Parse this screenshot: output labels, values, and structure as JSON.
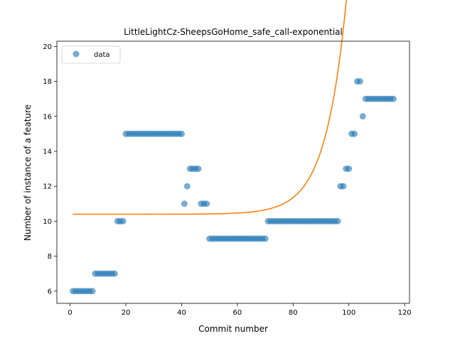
{
  "chart_data": {
    "type": "scatter",
    "title": "LittleLightCz-SheepsGoHome_safe_call-exponential",
    "xlabel": "Commit number",
    "ylabel": "Number of instance of a feature",
    "xlim": [
      -4.75,
      121.75
    ],
    "ylim": [
      5.3,
      20.3
    ],
    "xticks": [
      0,
      20,
      40,
      60,
      80,
      100,
      120
    ],
    "yticks": [
      6,
      8,
      10,
      12,
      14,
      16,
      18,
      20
    ],
    "grid": false,
    "legend": {
      "position": "top-left",
      "entries": [
        "data"
      ]
    },
    "colors": {
      "data": "#1f77b4",
      "fit": "#ff7f0e"
    },
    "series": [
      {
        "name": "data",
        "kind": "scatter",
        "x": [
          1,
          2,
          3,
          4,
          5,
          6,
          7,
          8,
          9,
          10,
          11,
          12,
          13,
          14,
          15,
          16,
          17,
          18,
          19,
          20,
          21,
          22,
          23,
          24,
          25,
          26,
          27,
          28,
          29,
          30,
          31,
          32,
          33,
          34,
          35,
          36,
          37,
          38,
          39,
          40,
          41,
          42,
          43,
          44,
          45,
          46,
          47,
          48,
          49,
          50,
          51,
          52,
          53,
          54,
          55,
          56,
          57,
          58,
          59,
          60,
          61,
          62,
          63,
          64,
          65,
          66,
          67,
          68,
          69,
          70,
          71,
          72,
          73,
          74,
          75,
          76,
          77,
          78,
          79,
          80,
          81,
          82,
          83,
          84,
          85,
          86,
          87,
          88,
          89,
          90,
          91,
          92,
          93,
          94,
          95,
          96,
          97,
          98,
          99,
          100,
          101,
          102,
          103,
          104,
          105,
          106,
          107,
          108,
          109,
          110,
          111,
          112,
          113,
          114,
          115,
          116
        ],
        "y": [
          6,
          6,
          6,
          6,
          6,
          6,
          6,
          6,
          7,
          7,
          7,
          7,
          7,
          7,
          7,
          7,
          10,
          10,
          10,
          15,
          15,
          15,
          15,
          15,
          15,
          15,
          15,
          15,
          15,
          15,
          15,
          15,
          15,
          15,
          15,
          15,
          15,
          15,
          15,
          15,
          11,
          12,
          13,
          13,
          13,
          13,
          11,
          11,
          11,
          9,
          9,
          9,
          9,
          9,
          9,
          9,
          9,
          9,
          9,
          9,
          9,
          9,
          9,
          9,
          9,
          9,
          9,
          9,
          9,
          9,
          10,
          10,
          10,
          10,
          10,
          10,
          10,
          10,
          10,
          10,
          10,
          10,
          10,
          10,
          10,
          10,
          10,
          10,
          10,
          10,
          10,
          10,
          10,
          10,
          10,
          10,
          12,
          12,
          13,
          13,
          15,
          15,
          18,
          18,
          16,
          17,
          17,
          17,
          17,
          17,
          17,
          17,
          17,
          17,
          17,
          17
        ]
      },
      {
        "name": "",
        "kind": "line",
        "fit": {
          "model": "exponential",
          "a": 2.18e-05,
          "b": 0.1336,
          "c": 10.4,
          "x_range": [
            1,
            116
          ]
        }
      }
    ]
  }
}
